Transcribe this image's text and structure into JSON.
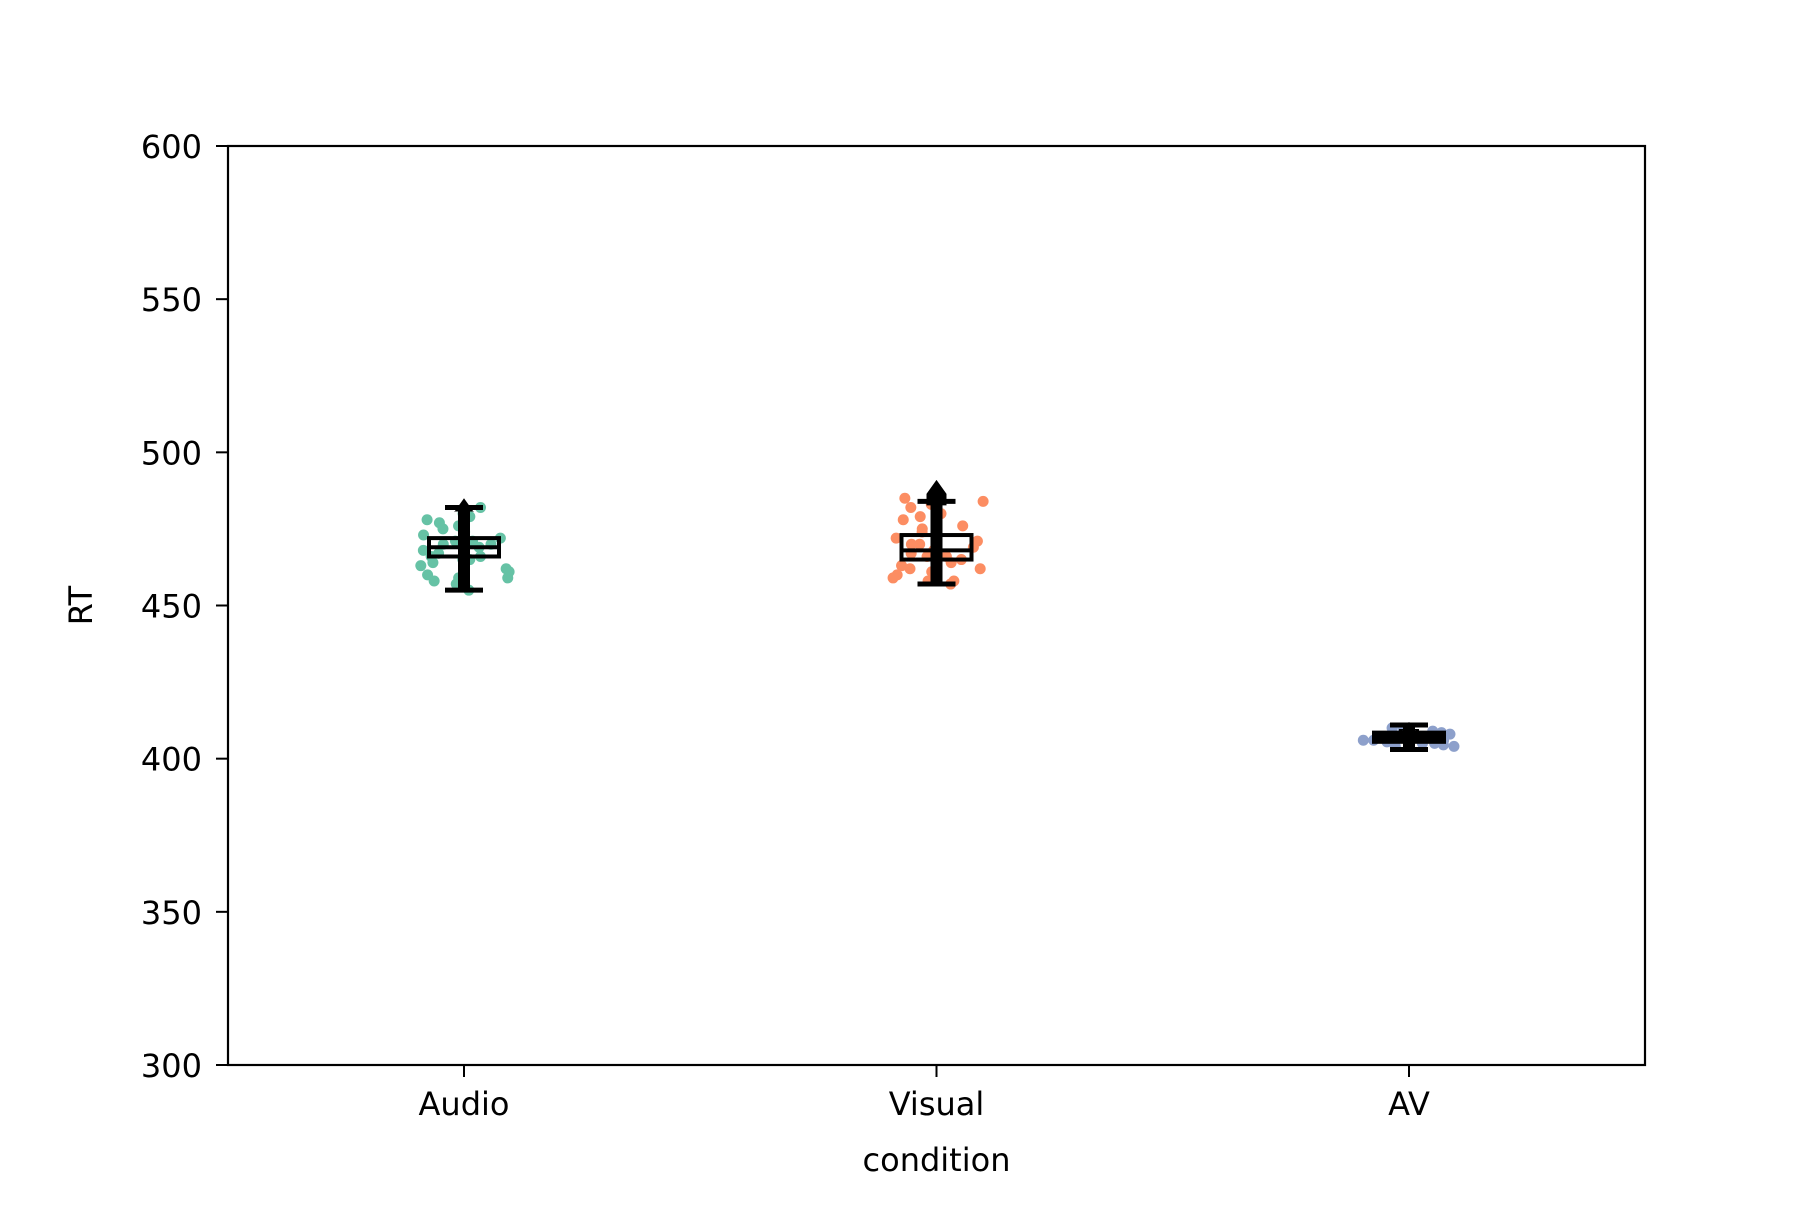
{
  "chart_data": {
    "type": "box",
    "title": "",
    "xlabel": "condition",
    "ylabel": "RT",
    "ylim": [
      300,
      600
    ],
    "yticks": [
      300,
      350,
      400,
      450,
      500,
      550,
      600
    ],
    "categories": [
      "Audio",
      "Visual",
      "AV"
    ],
    "grid": false,
    "legend": "none",
    "series": [
      {
        "category": "Audio",
        "color": "#66c2a5",
        "box": {
          "whisker_low": 455,
          "q1": 466,
          "median": 469,
          "q3": 472,
          "whisker_high": 482,
          "outlier_marker": 485
        },
        "points": [
          480,
          479,
          478,
          477,
          476,
          474,
          473,
          472,
          471,
          471,
          470,
          470,
          469,
          468,
          468,
          467,
          466,
          466,
          465,
          465,
          464,
          463,
          462,
          461,
          460,
          459,
          459,
          458,
          457,
          455,
          482,
          475
        ]
      },
      {
        "category": "Visual",
        "color": "#fc8d62",
        "box": {
          "whisker_low": 457,
          "q1": 465,
          "median": 468,
          "q3": 473,
          "whisker_high": 484,
          "outlier_marker": 491
        },
        "points": [
          485,
          484,
          483,
          482,
          480,
          479,
          478,
          476,
          475,
          474,
          472,
          471,
          470,
          469,
          468,
          467,
          466,
          466,
          465,
          464,
          463,
          462,
          461,
          460,
          459,
          458,
          458,
          457,
          462,
          470
        ]
      },
      {
        "category": "AV",
        "color": "#8da0cb",
        "box": {
          "whisker_low": 403,
          "q1": 405.5,
          "median": 407,
          "q3": 408.5,
          "whisker_high": 411,
          "outlier_marker": 412
        },
        "points": [
          410,
          409.5,
          409,
          408.5,
          408,
          407.5,
          407,
          407,
          406.5,
          406,
          405.5,
          405,
          404.5,
          404,
          408,
          406,
          409,
          405,
          407,
          406,
          410,
          404
        ]
      }
    ]
  }
}
